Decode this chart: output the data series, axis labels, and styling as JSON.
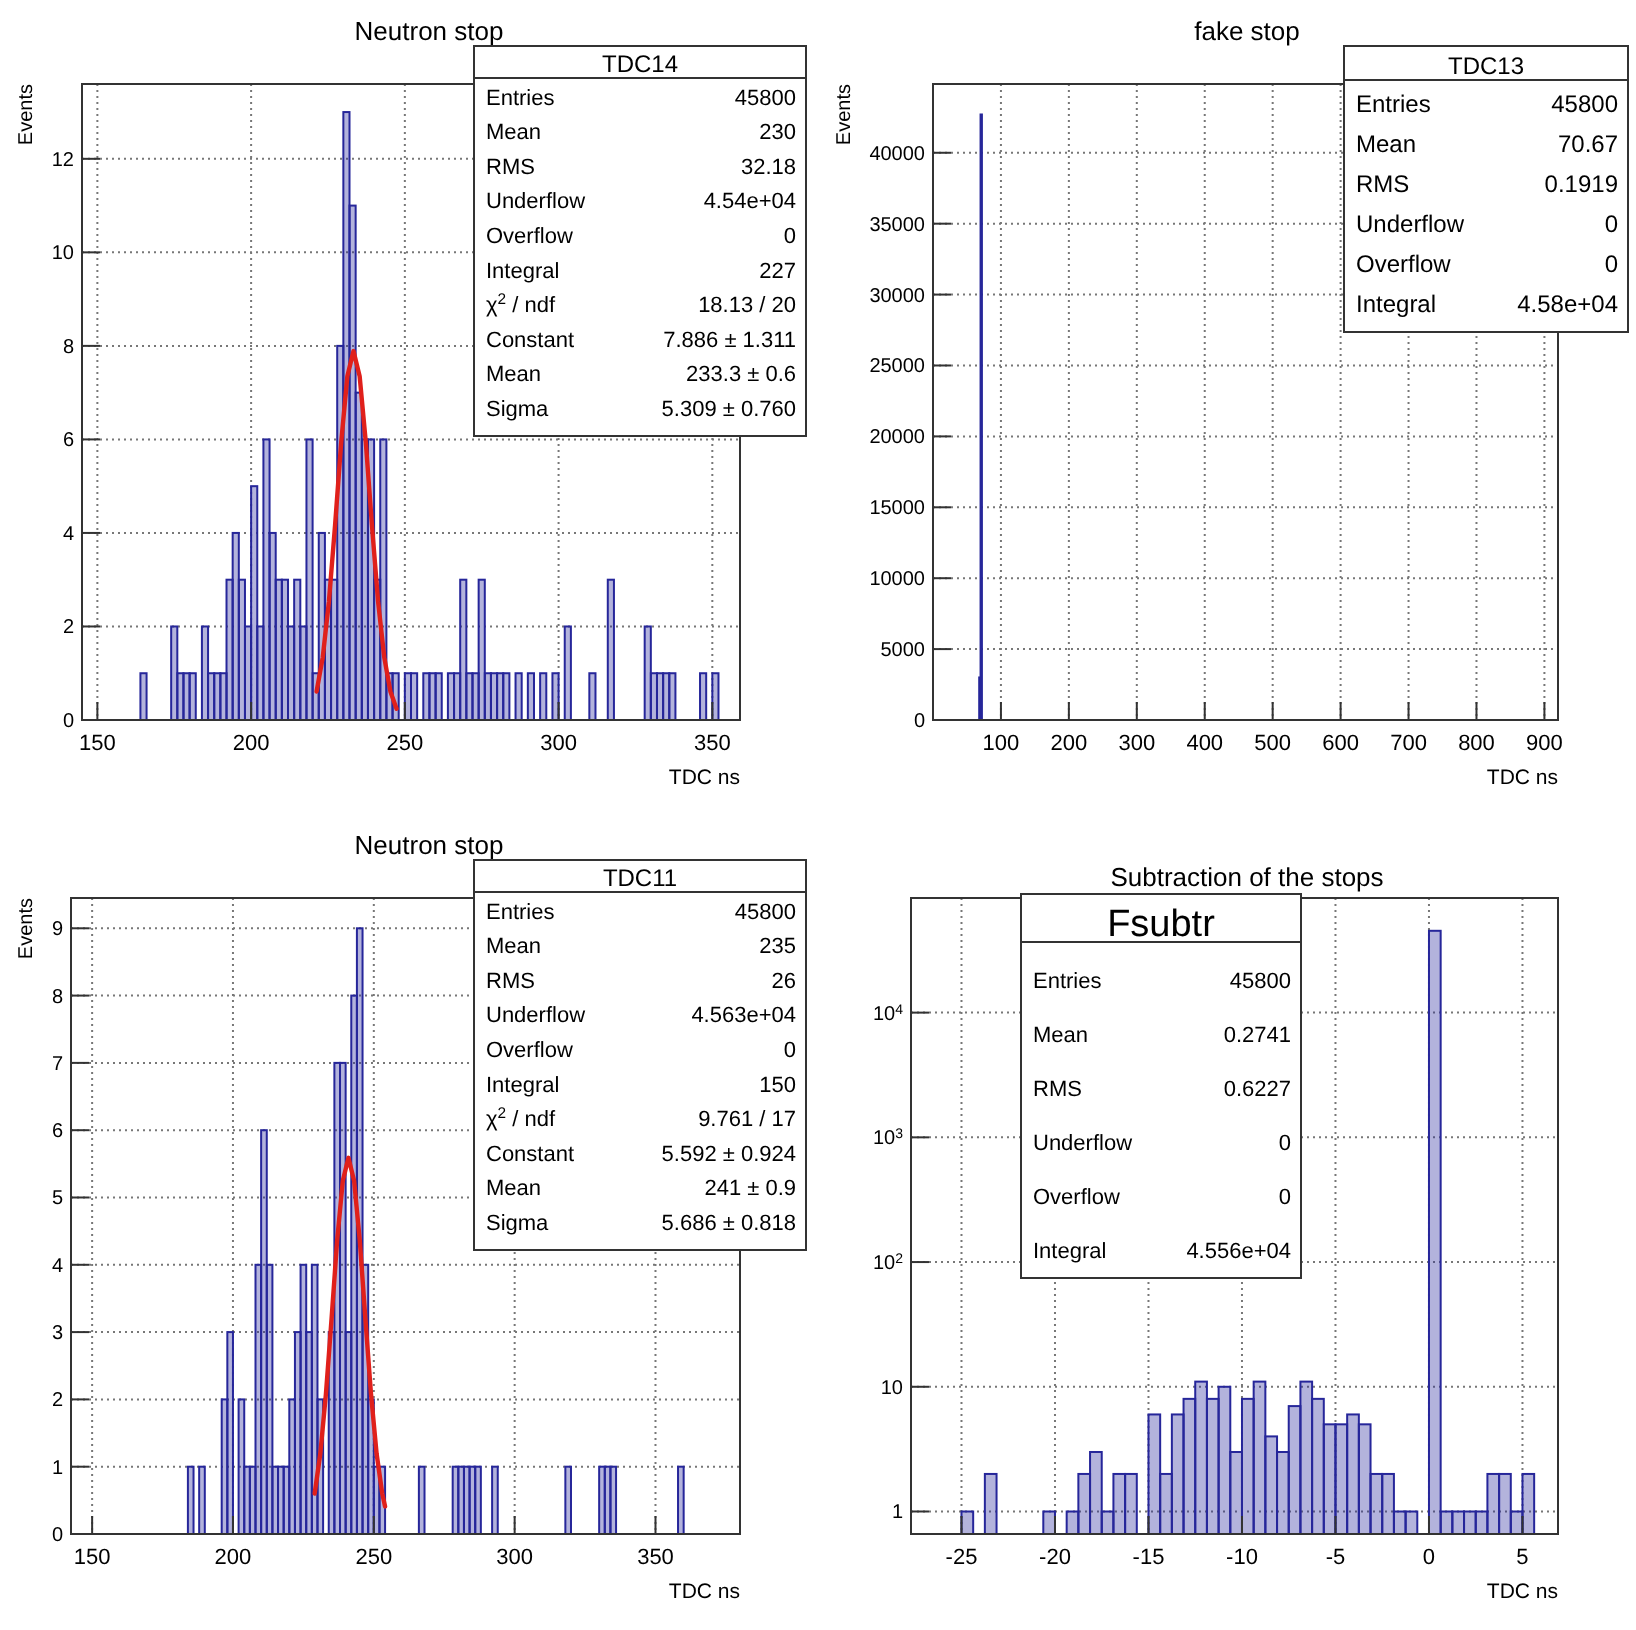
{
  "chart_data": [
    {
      "type": "histogram",
      "title": "Neutron stop",
      "xlabel": "TDC ns",
      "ylabel": "Events",
      "color": "#26269a",
      "bins": [
        162,
        164,
        166,
        168,
        170,
        172,
        174,
        176,
        178,
        180,
        182,
        184,
        186,
        188,
        190,
        192,
        194,
        196,
        198,
        200,
        202,
        204,
        206,
        208,
        210,
        212,
        214,
        216,
        218,
        220,
        222,
        224,
        226,
        228,
        230,
        232,
        234,
        236,
        238,
        240,
        242,
        244,
        246,
        248,
        250,
        252,
        254,
        256,
        258,
        260,
        262,
        264,
        266,
        268,
        270,
        272,
        274,
        276,
        278,
        280,
        282,
        284,
        286,
        288,
        290,
        292,
        294,
        296,
        298,
        300,
        302,
        304,
        306,
        308,
        310,
        312,
        314,
        316,
        318,
        320,
        322,
        324,
        326,
        328,
        330,
        332,
        334,
        336,
        338,
        340,
        342,
        344,
        346,
        348,
        350,
        352,
        354,
        356,
        358,
        360
      ],
      "values": [
        0,
        1,
        0,
        0,
        0,
        0,
        2,
        1,
        1,
        1,
        0,
        2,
        1,
        1,
        1,
        3,
        4,
        3,
        2,
        5,
        2,
        6,
        4,
        3,
        3,
        2,
        3,
        2,
        6,
        1,
        4,
        3,
        3,
        8,
        13,
        11,
        7,
        6,
        6,
        3,
        6,
        1,
        1,
        0,
        1,
        1,
        0,
        1,
        1,
        1,
        0,
        1,
        1,
        3,
        1,
        1,
        3,
        1,
        1,
        1,
        1,
        0,
        1,
        0,
        1,
        0,
        1,
        0,
        1,
        0,
        2,
        0,
        0,
        0,
        1,
        0,
        0,
        3,
        0,
        0,
        0,
        0,
        0,
        2,
        1,
        1,
        1,
        1,
        0,
        0,
        0,
        0,
        1,
        0,
        1,
        0,
        0,
        0,
        0
      ],
      "series": [
        {
          "type": "line",
          "color": "#e0201b",
          "x": [
            221.3,
            223.3,
            225.3,
            227.3,
            229.3,
            231.3,
            233.3,
            235.3,
            237.3,
            239.3,
            241.3,
            243.3,
            245.3,
            247.3
          ],
          "values": [
            0.61,
            1.34,
            2.53,
            4.16,
            5.94,
            7.35,
            7.89,
            7.35,
            5.94,
            4.16,
            2.53,
            1.34,
            0.61,
            0.24
          ]
        }
      ],
      "xlim": [
        145,
        359
      ],
      "xticks": [
        150,
        200,
        250,
        300,
        350
      ],
      "ylim": [
        0,
        13.6
      ],
      "yticks": [
        0,
        2,
        4,
        6,
        8,
        10,
        12
      ],
      "grid": true,
      "annotations": [
        "TDC14",
        "Entries",
        "45800",
        "Mean",
        "230",
        "RMS",
        "32.18",
        "Underflow",
        "4.54e+04",
        "Overflow",
        "0",
        "Integral",
        "227",
        "χ$^{2}$ / ndf",
        "18.13 / 20",
        "Constant",
        "7.886 ± 1.311",
        "Mean",
        "233.3 ± 0.6",
        "Sigma",
        "5.309 ± 0.760"
      ]
    },
    {
      "type": "histogram",
      "title": "fake stop",
      "xlabel": "TDC ns",
      "ylabel": "Events",
      "color": "#26269a",
      "bins": [
        68,
        70,
        72
      ],
      "values": [
        3000,
        42700
      ],
      "xlim": [
        0,
        920
      ],
      "xticks": [
        100,
        200,
        300,
        400,
        500,
        600,
        700,
        800,
        900
      ],
      "ylim": [
        0,
        44850
      ],
      "yticks": [
        0,
        5000,
        10000,
        15000,
        20000,
        25000,
        30000,
        35000,
        40000
      ],
      "grid": true,
      "annotations": [
        "TDC13",
        "Entries",
        "45800",
        "Mean",
        "70.67",
        "RMS",
        "0.1919",
        "Underflow",
        "0",
        "Overflow",
        "0",
        "Integral",
        "4.58e+04"
      ]
    },
    {
      "type": "histogram",
      "title": "Neutron stop",
      "xlabel": "TDC ns",
      "ylabel": "Events",
      "color": "#26269a",
      "bins": [
        182,
        184,
        186,
        188,
        190,
        192,
        194,
        196,
        198,
        200,
        202,
        204,
        206,
        208,
        210,
        212,
        214,
        216,
        218,
        220,
        222,
        224,
        226,
        228,
        230,
        232,
        234,
        236,
        238,
        240,
        242,
        244,
        246,
        248,
        250,
        252,
        254,
        256,
        258,
        260,
        262,
        264,
        266,
        268,
        270,
        272,
        274,
        276,
        278,
        280,
        282,
        284,
        286,
        288,
        290,
        292,
        294,
        296,
        298,
        300,
        302,
        304,
        306,
        308,
        310,
        312,
        314,
        316,
        318,
        320,
        322,
        324,
        326,
        328,
        330,
        332,
        334,
        336,
        338,
        340,
        342,
        344,
        346,
        348,
        350,
        352,
        354,
        356,
        358,
        360
      ],
      "values": [
        0,
        1,
        0,
        1,
        0,
        0,
        0,
        2,
        3,
        0,
        2,
        1,
        1,
        4,
        6,
        4,
        1,
        1,
        1,
        2,
        3,
        4,
        3,
        4,
        2,
        0,
        3,
        7,
        7,
        3,
        8,
        9,
        4,
        2,
        1,
        1,
        0,
        0,
        0,
        0,
        0,
        0,
        1,
        0,
        0,
        0,
        0,
        0,
        1,
        1,
        1,
        1,
        1,
        0,
        0,
        1,
        0,
        0,
        0,
        0,
        0,
        0,
        0,
        0,
        0,
        0,
        0,
        0,
        1,
        0,
        0,
        0,
        0,
        0,
        1,
        1,
        1,
        0,
        0,
        0,
        0,
        0,
        0,
        0,
        0,
        0,
        0,
        0,
        1
      ],
      "series": [
        {
          "type": "line",
          "color": "#e0201b",
          "x": [
            229,
            231,
            233,
            235,
            237,
            239,
            241,
            243,
            245,
            247,
            249,
            251,
            253,
            254
          ],
          "values": [
            0.6,
            1.19,
            2.08,
            3.2,
            4.37,
            5.25,
            5.59,
            5.25,
            4.37,
            3.2,
            2.08,
            1.19,
            0.6,
            0.41
          ]
        }
      ],
      "xlim": [
        142.5,
        380
      ],
      "xticks": [
        150,
        200,
        250,
        300,
        350
      ],
      "ylim": [
        0,
        9.45
      ],
      "yticks": [
        0,
        1,
        2,
        3,
        4,
        5,
        6,
        7,
        8,
        9
      ],
      "grid": true,
      "annotations": [
        "TDC11",
        "Entries",
        "45800",
        "Mean",
        "235",
        "RMS",
        "26",
        "Underflow",
        "4.563e+04",
        "Overflow",
        "0",
        "Integral",
        "150",
        "χ$^{2}$ / ndf",
        "9.761 / 17",
        "Constant",
        "5.592 ± 0.924",
        "Mean",
        "241 ± 0.9",
        "Sigma",
        "5.686 ± 0.818"
      ]
    },
    {
      "type": "histogram",
      "title": "Subtraction of the stops",
      "xlabel": "TDC ns",
      "color": "#26269a",
      "log": "y",
      "bins": [
        -27.5,
        -26.875,
        -26.25,
        -25.625,
        -25,
        -24.375,
        -23.75,
        -23.125,
        -22.5,
        -21.875,
        -21.25,
        -20.625,
        -20,
        -19.375,
        -18.75,
        -18.125,
        -17.5,
        -16.875,
        -16.25,
        -15.625,
        -15,
        -14.375,
        -13.75,
        -13.125,
        -12.5,
        -11.875,
        -11.25,
        -10.625,
        -10,
        -9.375,
        -8.75,
        -8.125,
        -7.5,
        -6.875,
        -6.25,
        -5.625,
        -5,
        -4.375,
        -3.75,
        -3.125,
        -2.5,
        -1.875,
        -1.25,
        -0.625,
        0,
        0.625,
        1.25,
        1.875,
        2.5,
        3.125,
        3.75,
        4.375,
        5,
        5.625
      ],
      "values": [
        null,
        null,
        null,
        null,
        1,
        null,
        2,
        null,
        null,
        null,
        null,
        1,
        null,
        1,
        2,
        3,
        1,
        2,
        2,
        null,
        6,
        2,
        6,
        8,
        11,
        8,
        10,
        3,
        8,
        11,
        4,
        3,
        7,
        11,
        8,
        5,
        5,
        6,
        5,
        2,
        2,
        1,
        1,
        null,
        45300,
        1,
        1,
        1,
        1,
        2,
        2,
        1,
        2
      ],
      "xlim": [
        -27.7,
        6.9
      ],
      "xticks": [
        -25,
        -20,
        -15,
        -10,
        -5,
        0,
        5
      ],
      "ylim": [
        0.66,
        83000
      ],
      "yticks": [
        1,
        10,
        {
          "value": 100,
          "label": "10$^{2}$"
        },
        {
          "value": 1000,
          "label": "10$^{3}$"
        },
        {
          "value": 10000,
          "label": "10$^{4}$"
        }
      ],
      "grid": true,
      "annotations": [
        "Fsubtr",
        "Entries",
        "45800",
        "Mean",
        "0.2741",
        "RMS",
        "0.6227",
        "Underflow",
        "0",
        "Overflow",
        "0",
        "Integral",
        "4.556e+04"
      ]
    }
  ]
}
